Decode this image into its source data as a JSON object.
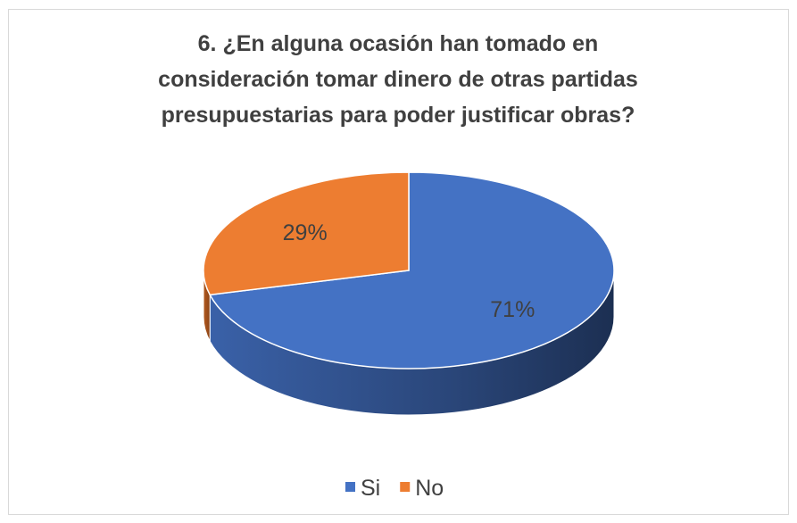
{
  "chart_data": {
    "type": "pie",
    "title": [
      "6. ¿En alguna ocasión han tomado en",
      "consideración tomar dinero de otras partidas",
      "presupuestarias para poder justificar obras?"
    ],
    "categories": [
      "Si",
      "No"
    ],
    "values": [
      71,
      29
    ],
    "value_labels": [
      "71%",
      "29%"
    ],
    "colors": [
      "#4472c4",
      "#ed7d31"
    ],
    "legend": "bottom"
  }
}
